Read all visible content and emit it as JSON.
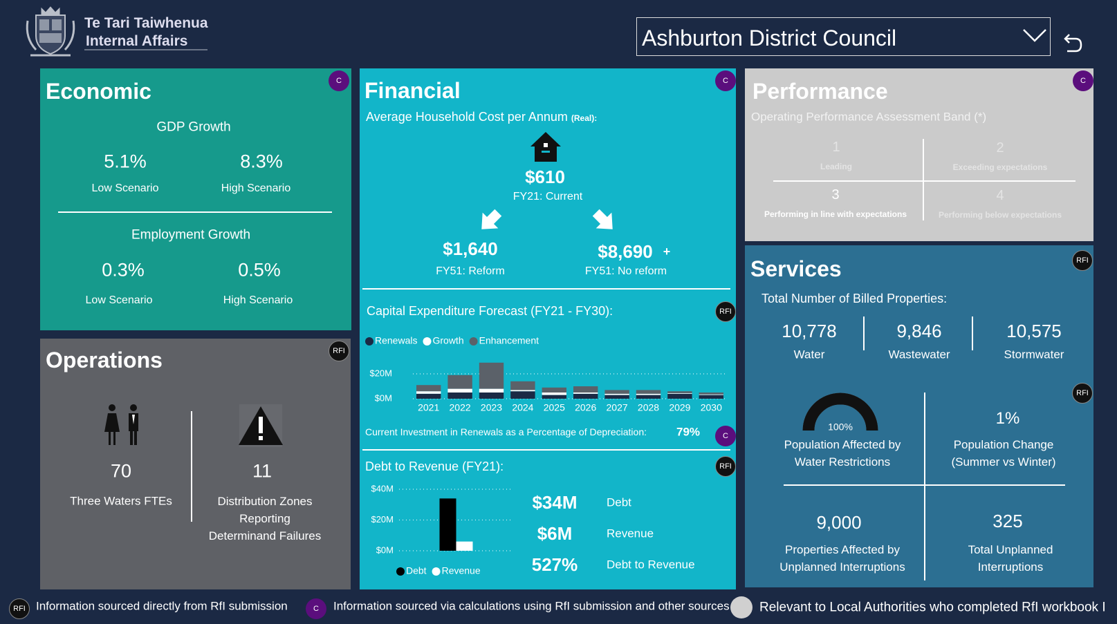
{
  "header": {
    "org_line1": "Te Tari Taiwhenua",
    "org_line2": "Internal Affairs",
    "council": "Ashburton District Council"
  },
  "economic": {
    "title": "Economic",
    "badge": "C",
    "gdp": {
      "heading": "GDP Growth",
      "low": "5.1%",
      "low_label": "Low Scenario",
      "high": "8.3%",
      "high_label": "High Scenario"
    },
    "employment": {
      "heading": "Employment Growth",
      "low": "0.3%",
      "low_label": "Low Scenario",
      "high": "0.5%",
      "high_label": "High Scenario"
    }
  },
  "operations": {
    "title": "Operations",
    "badge": "RFI",
    "ftes": {
      "value": "70",
      "label": "Three Waters FTEs"
    },
    "zones": {
      "value": "11",
      "label": "Distribution Zones Reporting Determinand Failures"
    }
  },
  "financial": {
    "title": "Financial",
    "badge": "C",
    "subtitle": "Average Household Cost per Annum",
    "subtitle_note": "(Real):",
    "current": {
      "value": "$610",
      "label": "FY21: Current"
    },
    "reform": {
      "value": "$1,640",
      "label": "FY51: Reform"
    },
    "no_reform": {
      "value": "$8,690",
      "marker": "+",
      "label": "FY51: No reform"
    },
    "capex_badge": "RFI",
    "renewals": {
      "label": "Current Investment in Renewals as a Percentage of Depreciation:",
      "value": "79%",
      "badge": "C"
    },
    "debt_badge": "RFI",
    "debt_summary": [
      {
        "value": "$34M",
        "label": "Debt"
      },
      {
        "value": "$6M",
        "label": "Revenue"
      },
      {
        "value": "527%",
        "label": "Debt to Revenue"
      }
    ]
  },
  "performance": {
    "title": "Performance",
    "badge": "C",
    "subtitle": "Operating Performance Assessment Band (*)",
    "bands": [
      {
        "number": "1",
        "label": "Leading"
      },
      {
        "number": "2",
        "label": "Exceeding expectations"
      },
      {
        "number": "3",
        "label": "Performing in line with expectations"
      },
      {
        "number": "4",
        "label": "Performing below expectations"
      }
    ]
  },
  "services": {
    "title": "Services",
    "badge": "RFI",
    "subtitle": "Total Number of Billed Properties:",
    "properties": [
      {
        "value": "10,778",
        "label": "Water"
      },
      {
        "value": "9,846",
        "label": "Wastewater"
      },
      {
        "value": "10,575",
        "label": "Stormwater"
      }
    ],
    "metrics_badge": "RFI",
    "population_change": {
      "value": "1%",
      "label": "Population Change (Summer vs Winter)"
    },
    "properties_affected": {
      "value": "9,000",
      "label": "Properties Affected by Unplanned Interruptions"
    },
    "interruptions": {
      "value": "325",
      "label": "Total Unplanned Interruptions"
    }
  },
  "footer": [
    {
      "badge": "RFI",
      "text": "Information sourced directly from RfI submission"
    },
    {
      "badge": "C",
      "text": "Information sourced via calculations using RfI submission and other sources"
    },
    {
      "text": "Relevant to Local Authorities who completed RfI workbook I"
    }
  ],
  "chart_data": [
    {
      "type": "bar",
      "stacked": true,
      "title": "Capital Expenditure Forecast (FY21 - FY30):",
      "categories": [
        "2021",
        "2022",
        "2023",
        "2024",
        "2025",
        "2026",
        "2027",
        "2028",
        "2029",
        "2030"
      ],
      "series": [
        {
          "name": "Renewals",
          "color": "#1b2a45",
          "values": [
            4,
            5,
            5,
            6,
            3,
            4,
            3,
            3,
            4,
            3
          ]
        },
        {
          "name": "Growth",
          "color": "#ffffff",
          "values": [
            2,
            3,
            3,
            1,
            2,
            1,
            1,
            1,
            0.5,
            0.5
          ]
        },
        {
          "name": "Enhancement",
          "color": "#5b6169",
          "values": [
            5,
            11,
            21,
            7,
            4,
            5,
            3,
            3,
            1.5,
            1.5
          ]
        }
      ],
      "ylim": [
        0,
        30
      ],
      "yticks": [
        {
          "value": 0,
          "label": "$0M"
        },
        {
          "value": 20,
          "label": "$20M"
        }
      ],
      "grid": true
    },
    {
      "type": "bar",
      "stacked": false,
      "title": "Debt to Revenue (FY21):",
      "categories": [
        null
      ],
      "series": [
        {
          "name": "Debt",
          "color": "#000000",
          "values": [
            34
          ]
        },
        {
          "name": "Revenue",
          "color": "#ffffff",
          "values": [
            6
          ]
        }
      ],
      "ylim": [
        0,
        40
      ],
      "yticks": [
        {
          "value": 0,
          "label": "$0M"
        },
        {
          "value": 20,
          "label": "$20M"
        },
        {
          "value": 40,
          "label": "$40M"
        }
      ],
      "grid": true
    },
    {
      "type": "gauge",
      "title": "Population Affected by Water Restrictions",
      "values": [
        100
      ],
      "value_labels": [
        "100%"
      ],
      "ylim": [
        0,
        100
      ],
      "color": "#111111"
    }
  ]
}
